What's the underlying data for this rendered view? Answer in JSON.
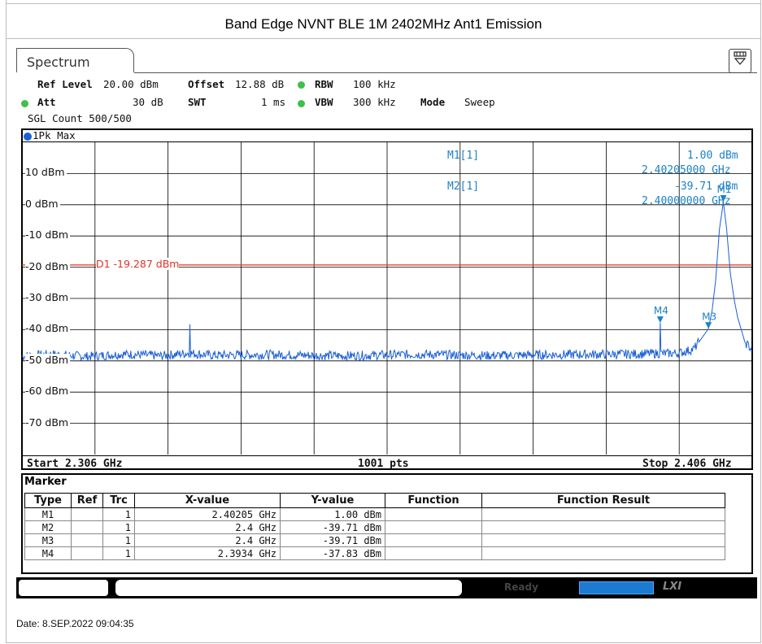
{
  "window": {
    "title": "Band Edge NVNT BLE 1M 2402MHz Ant1 Emission"
  },
  "tab": {
    "label": "Spectrum"
  },
  "settings": {
    "ref_level_label": "Ref Level",
    "ref_level_value": "20.00 dBm",
    "offset_label": "Offset",
    "offset_value": "12.88 dB",
    "rbw_label": "RBW",
    "rbw_value": "100 kHz",
    "att_label": "Att",
    "att_value": "30 dB",
    "swt_label": "SWT",
    "swt_value": "1 ms",
    "vbw_label": "VBW",
    "vbw_value": "300 kHz",
    "mode_label": "Mode",
    "mode_value": "Sweep",
    "sgl_count": "SGL Count 500/500"
  },
  "trace": {
    "label": "1Pk Max"
  },
  "chart_data": {
    "type": "line",
    "x_unit": "GHz",
    "y_unit": "dBm",
    "xlim": [
      2.306,
      2.406
    ],
    "ylim": [
      -80,
      20
    ],
    "y_ticks": [
      "10 dBm",
      "0 dBm",
      "-10 dBm",
      "-20 dBm",
      "-30 dBm",
      "-40 dBm",
      "-50 dBm",
      "-60 dBm",
      "-70 dBm"
    ],
    "y_tick_values": [
      10,
      0,
      -10,
      -20,
      -30,
      -40,
      -50,
      -60,
      -70
    ],
    "display_line": {
      "label": "D1  -19.287 dBm",
      "value": -19.287,
      "color": "#e0312a"
    },
    "series": [
      {
        "color": "#1a5fd6",
        "x": [
          2.306,
          2.31,
          2.315,
          2.32,
          2.325,
          2.3289,
          2.329,
          2.3291,
          2.332,
          2.34,
          2.35,
          2.36,
          2.37,
          2.38,
          2.39,
          2.3933,
          2.3934,
          2.3935,
          2.396,
          2.398,
          2.399,
          2.4,
          2.4005,
          2.401,
          2.4015,
          2.40205,
          2.4025,
          2.403,
          2.4035,
          2.404,
          2.4045,
          2.405,
          2.406
        ],
        "y": [
          -48.5,
          -47.9,
          -48.6,
          -47.8,
          -48.4,
          -47.5,
          -38.3,
          -47.6,
          -48.2,
          -48.0,
          -48.4,
          -47.9,
          -48.3,
          -48.0,
          -47.8,
          -47.6,
          -37.8,
          -47.7,
          -47.5,
          -46.2,
          -43.0,
          -39.7,
          -34.0,
          -24.0,
          -8.0,
          1.0,
          -8.0,
          -22.0,
          -30.0,
          -36.0,
          -40.0,
          -44.0,
          -46.5
        ]
      }
    ],
    "x_start_label": "Start 2.306 GHz",
    "x_points_label": "1001 pts",
    "x_stop_label": "Stop 2.406 GHz"
  },
  "markers_readout": {
    "m1_label": "M1[1]",
    "m1_y": "1.00 dBm",
    "m1_x": "2.40205000 GHz",
    "m2_label": "M2[1]",
    "m2_y": "-39.71 dBm",
    "m2_x": "2.40000000 GHz"
  },
  "marker_flags": [
    {
      "name": "M1",
      "x": 2.40205,
      "y": 1.0
    },
    {
      "name": "M3",
      "x": 2.4,
      "y": -39.71
    },
    {
      "name": "M4",
      "x": 2.3934,
      "y": -37.83
    }
  ],
  "marker_table": {
    "title": "Marker",
    "headers": [
      "Type",
      "Ref",
      "Trc",
      "X-value",
      "Y-value",
      "Function",
      "Function Result"
    ],
    "rows": [
      [
        "M1",
        "",
        "1",
        "2.40205 GHz",
        "1.00 dBm",
        "",
        ""
      ],
      [
        "M2",
        "",
        "1",
        "2.4 GHz",
        "-39.71 dBm",
        "",
        ""
      ],
      [
        "M3",
        "",
        "1",
        "2.4 GHz",
        "-39.71 dBm",
        "",
        ""
      ],
      [
        "M4",
        "",
        "1",
        "2.3934 GHz",
        "-37.83 dBm",
        "",
        ""
      ]
    ]
  },
  "status": {
    "ready": "Ready",
    "lxi": "LXI"
  },
  "date": "Date: 8.SEP.2022  09:04:35"
}
